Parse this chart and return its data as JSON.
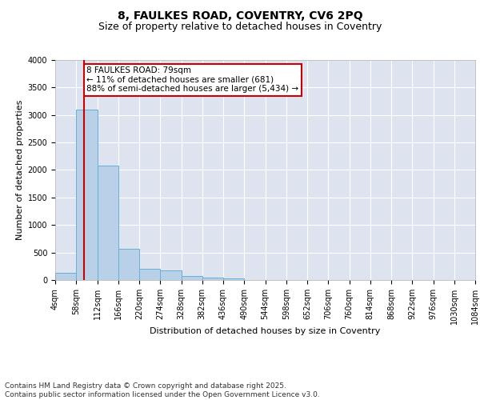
{
  "title_line1": "8, FAULKES ROAD, COVENTRY, CV6 2PQ",
  "title_line2": "Size of property relative to detached houses in Coventry",
  "xlabel": "Distribution of detached houses by size in Coventry",
  "ylabel": "Number of detached properties",
  "bar_color": "#b8d0e8",
  "bar_edge_color": "#6aaed6",
  "background_color": "#dde4f0",
  "grid_color": "#ffffff",
  "annotation_box_color": "#cc0000",
  "property_line_color": "#cc0000",
  "property_size": 79,
  "annotation_text": "8 FAULKES ROAD: 79sqm\n← 11% of detached houses are smaller (681)\n88% of semi-detached houses are larger (5,434) →",
  "tick_labels": [
    "4sqm",
    "58sqm",
    "112sqm",
    "166sqm",
    "220sqm",
    "274sqm",
    "328sqm",
    "382sqm",
    "436sqm",
    "490sqm",
    "544sqm",
    "598sqm",
    "652sqm",
    "706sqm",
    "760sqm",
    "814sqm",
    "868sqm",
    "922sqm",
    "976sqm",
    "1030sqm",
    "1084sqm"
  ],
  "bin_edges": [
    4,
    58,
    112,
    166,
    220,
    274,
    328,
    382,
    436,
    490,
    544,
    598,
    652,
    706,
    760,
    814,
    868,
    922,
    976,
    1030,
    1084
  ],
  "bar_heights": [
    130,
    3100,
    2080,
    570,
    200,
    180,
    75,
    50,
    30,
    0,
    0,
    0,
    0,
    0,
    0,
    0,
    0,
    0,
    0,
    0
  ],
  "ylim": [
    0,
    4000
  ],
  "yticks": [
    0,
    500,
    1000,
    1500,
    2000,
    2500,
    3000,
    3500,
    4000
  ],
  "footer_text": "Contains HM Land Registry data © Crown copyright and database right 2025.\nContains public sector information licensed under the Open Government Licence v3.0.",
  "title_fontsize": 10,
  "subtitle_fontsize": 9,
  "axis_label_fontsize": 8,
  "tick_fontsize": 7,
  "footer_fontsize": 6.5,
  "annot_fontsize": 7.5
}
